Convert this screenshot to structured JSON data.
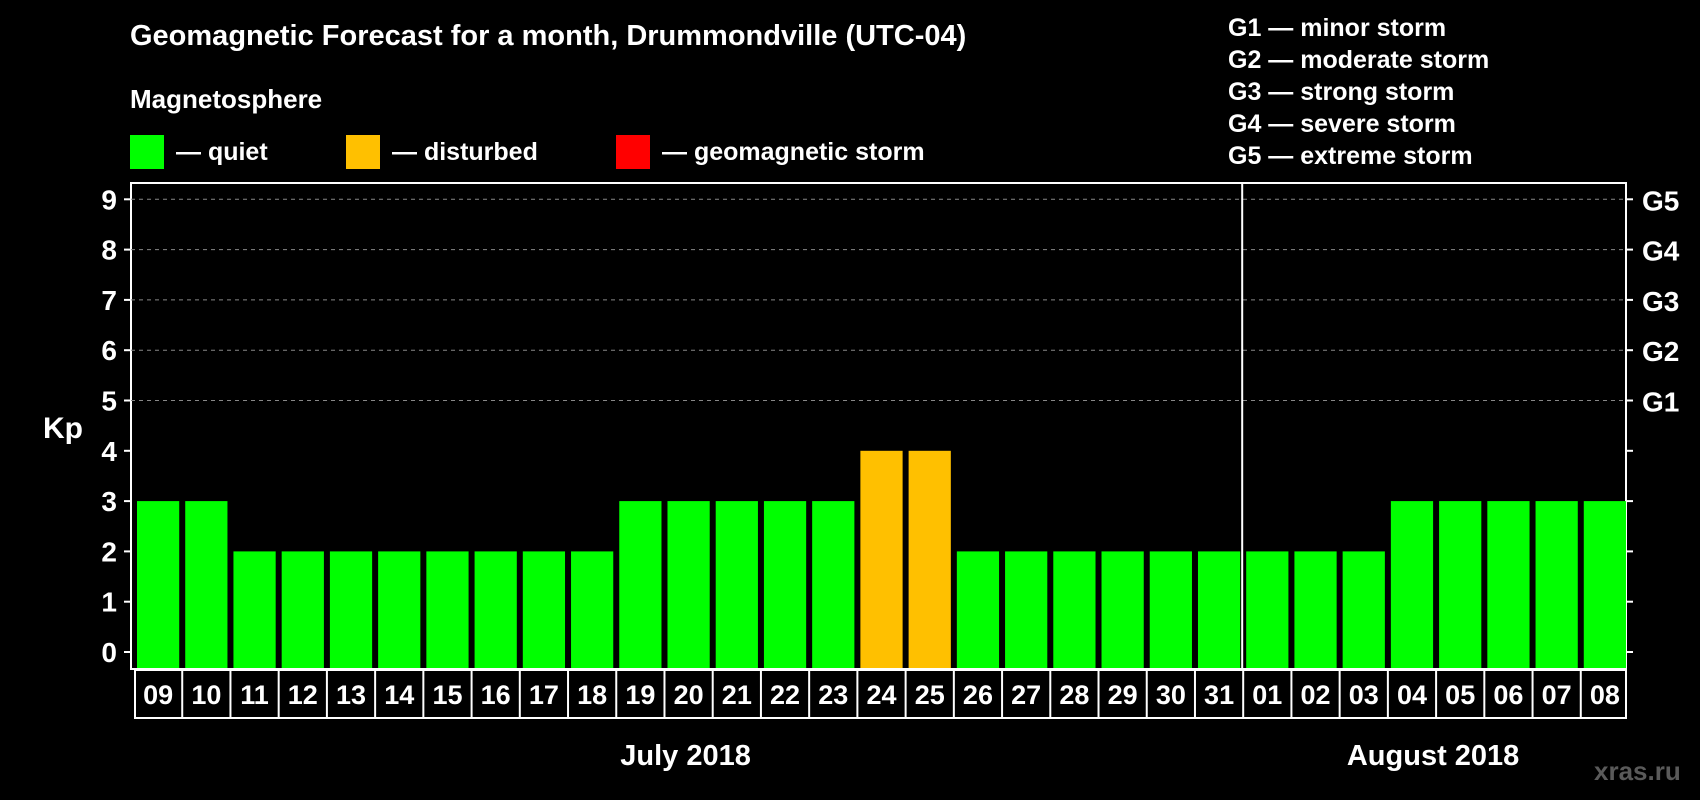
{
  "title": "Geomagnetic Forecast for a month, Drummondville (UTC-04)",
  "subtitle": "Magnetosphere",
  "legend": [
    {
      "label": "— quiet",
      "color": "#00ff00"
    },
    {
      "label": "— disturbed",
      "color": "#ffc000"
    },
    {
      "label": "— geomagnetic storm",
      "color": "#ff0000"
    }
  ],
  "storm_scale": [
    "G1 — minor storm",
    "G2 — moderate storm",
    "G3 — strong storm",
    "G4 — severe storm",
    "G5 — extreme storm"
  ],
  "watermark": "xras.ru",
  "chart_data": {
    "type": "bar",
    "title": "Geomagnetic Forecast for a month, Drummondville (UTC-04)",
    "ylabel": "Kp",
    "ylim": [
      0,
      9
    ],
    "yticks": [
      "0",
      "1",
      "2",
      "3",
      "4",
      "5",
      "6",
      "7",
      "8",
      "9"
    ],
    "right_axis_labels": [
      {
        "kp": 5,
        "label": "G1"
      },
      {
        "kp": 6,
        "label": "G2"
      },
      {
        "kp": 7,
        "label": "G3"
      },
      {
        "kp": 8,
        "label": "G4"
      },
      {
        "kp": 9,
        "label": "G5"
      }
    ],
    "categories": [
      "09",
      "10",
      "11",
      "12",
      "13",
      "14",
      "15",
      "16",
      "17",
      "18",
      "19",
      "20",
      "21",
      "22",
      "23",
      "24",
      "25",
      "26",
      "27",
      "28",
      "29",
      "30",
      "31",
      "01",
      "02",
      "03",
      "04",
      "05",
      "06",
      "07",
      "08"
    ],
    "values": [
      3,
      3,
      2,
      2,
      2,
      2,
      2,
      2,
      2,
      2,
      3,
      3,
      3,
      3,
      3,
      4,
      4,
      2,
      2,
      2,
      2,
      2,
      2,
      2,
      2,
      2,
      3,
      3,
      3,
      3,
      3
    ],
    "colors": {
      "quiet": "#00ff00",
      "disturbed": "#ffc000",
      "storm": "#ff0000"
    },
    "months": [
      {
        "label": "July 2018",
        "first_index": 0,
        "last_index": 22
      },
      {
        "label": "August 2018",
        "first_index": 23,
        "last_index": 30
      }
    ]
  }
}
